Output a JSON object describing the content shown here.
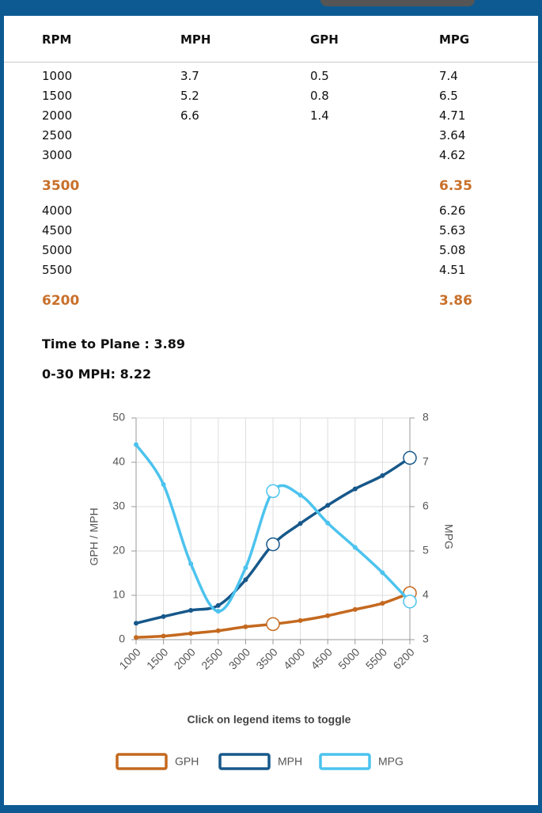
{
  "table": {
    "headers": [
      "RPM",
      "MPH",
      "GPH",
      "MPG"
    ],
    "rows": [
      {
        "cells": [
          "1000",
          "3.7",
          "0.5",
          "7.4"
        ]
      },
      {
        "cells": [
          "1500",
          "5.2",
          "0.8",
          "6.5"
        ]
      },
      {
        "cells": [
          "2000",
          "6.6",
          "1.4",
          "4.71"
        ]
      },
      {
        "cells": [
          "2500",
          null,
          null,
          "3.64"
        ]
      },
      {
        "cells": [
          "3000",
          null,
          null,
          "4.62"
        ]
      },
      {
        "cells": [
          "3500",
          null,
          null,
          "6.35"
        ],
        "highlight": true
      },
      {
        "cells": [
          "4000",
          null,
          null,
          "6.26"
        ]
      },
      {
        "cells": [
          "4500",
          null,
          null,
          "5.63"
        ]
      },
      {
        "cells": [
          "5000",
          null,
          null,
          "5.08"
        ]
      },
      {
        "cells": [
          "5500",
          null,
          null,
          "4.51"
        ]
      },
      {
        "cells": [
          "6200",
          null,
          null,
          "3.86"
        ],
        "highlight": true
      }
    ]
  },
  "stats": [
    "Time to Plane : 3.89",
    "0-30 MPH: 8.22"
  ],
  "chart_data": {
    "type": "line",
    "categories": [
      "1000",
      "1500",
      "2000",
      "2500",
      "3000",
      "3500",
      "4000",
      "4500",
      "5000",
      "5500",
      "6200"
    ],
    "ylabel": "GPH / MPH",
    "y2label": "MPG",
    "ylim": [
      0,
      50
    ],
    "yticks": [
      0,
      10,
      20,
      30,
      40,
      50
    ],
    "y2lim": [
      3,
      8
    ],
    "y2ticks": [
      3,
      4,
      5,
      6,
      7,
      8
    ],
    "grid": true,
    "series": [
      {
        "name": "GPH",
        "color": "#c4691f",
        "values": [
          0.5,
          0.8,
          1.4,
          2.0,
          2.9,
          3.5,
          4.3,
          5.4,
          6.8,
          8.2,
          10.5
        ]
      },
      {
        "name": "MPH",
        "color": "#17588a",
        "values": [
          3.7,
          5.2,
          6.6,
          7.7,
          13.5,
          21.5,
          26.2,
          30.3,
          34,
          37,
          41
        ]
      },
      {
        "name": "MPG",
        "color": "#4cc3ee",
        "axis": "y2",
        "values": [
          7.4,
          6.5,
          4.71,
          3.64,
          4.62,
          6.35,
          6.26,
          5.63,
          5.08,
          4.51,
          3.86
        ]
      }
    ],
    "note": "Click on legend items to toggle",
    "legend": "bottom"
  }
}
